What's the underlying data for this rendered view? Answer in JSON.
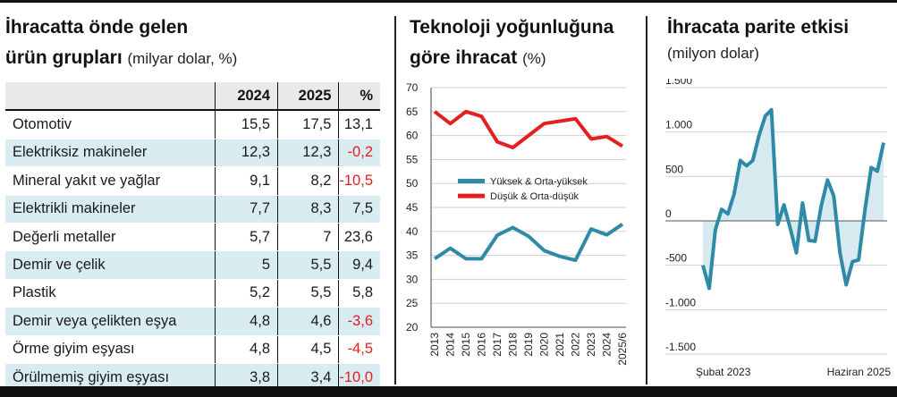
{
  "panel_left": {
    "title_line1": "İhracatta önde gelen",
    "title_line2": "ürün grupları",
    "unit": "(milyar dolar, %)",
    "headers": [
      "",
      "2024",
      "2025",
      "%"
    ],
    "rows": [
      {
        "name": "Otomotiv",
        "v2024": "15,5",
        "v2025": "17,5",
        "pct": "13,1",
        "neg": false
      },
      {
        "name": "Elektriksiz makineler",
        "v2024": "12,3",
        "v2025": "12,3",
        "pct": "-0,2",
        "neg": true
      },
      {
        "name": "Mineral yakıt ve yağlar",
        "v2024": "9,1",
        "v2025": "8,2",
        "pct": "-10,5",
        "neg": true
      },
      {
        "name": "Elektrikli makineler",
        "v2024": "7,7",
        "v2025": "8,3",
        "pct": "7,5",
        "neg": false
      },
      {
        "name": "Değerli metaller",
        "v2024": "5,7",
        "v2025": "7",
        "pct": "23,6",
        "neg": false
      },
      {
        "name": "Demir ve çelik",
        "v2024": "5",
        "v2025": "5,5",
        "pct": "9,4",
        "neg": false
      },
      {
        "name": "Plastik",
        "v2024": "5,2",
        "v2025": "5,5",
        "pct": "5,8",
        "neg": false
      },
      {
        "name": "Demir veya çelikten eşya",
        "v2024": "4,8",
        "v2025": "4,6",
        "pct": "-3,6",
        "neg": true
      },
      {
        "name": "Örme giyim eşyası",
        "v2024": "4,8",
        "v2025": "4,5",
        "pct": "-4,5",
        "neg": true
      },
      {
        "name": "Örülmemiş giyim eşyası",
        "v2024": "3,8",
        "v2025": "3,4",
        "pct": "-10,0",
        "neg": true
      }
    ],
    "colors": {
      "stripe": "#d9ecf1",
      "negative": "#e4201f"
    }
  },
  "panel_middle": {
    "title_line1": "Teknoloji yoğunluğuna",
    "title_line2": "göre ihracat",
    "unit": "(%)"
  },
  "panel_right": {
    "title_line1": "İhracata parite etkisi",
    "unit": "(milyon dolar)"
  },
  "chart_data": [
    {
      "type": "line",
      "title": "Teknoloji yoğunluğuna göre ihracat (%)",
      "x": [
        "2013",
        "2014",
        "2015",
        "2016",
        "2017",
        "2018",
        "2019",
        "2020",
        "2021",
        "2022",
        "2023",
        "2024",
        "2025/6"
      ],
      "y_ticks": [
        "70",
        "65",
        "60",
        "55",
        "50",
        "45",
        "40",
        "35",
        "30",
        "25",
        "20"
      ],
      "ylim": [
        20,
        70
      ],
      "grid": true,
      "legend_position": "middle-left",
      "series": [
        {
          "name": "Yüksek & Orta-yüksek",
          "color": "#2e8aa6",
          "values": [
            34.3,
            36.5,
            34.3,
            34.3,
            39.2,
            40.8,
            39.0,
            36.0,
            34.8,
            34.0,
            40.5,
            39.3,
            41.5
          ]
        },
        {
          "name": "Düşük & Orta-düşük",
          "color": "#e4201f",
          "values": [
            65.0,
            62.5,
            65.0,
            64.0,
            58.7,
            57.5,
            60.0,
            62.5,
            63.0,
            63.5,
            59.3,
            59.8,
            57.8
          ]
        }
      ]
    },
    {
      "type": "area",
      "title": "İhracata parite etkisi (milyon dolar)",
      "x_labels": [
        "Şubat 2023",
        "Haziran 2025"
      ],
      "y_ticks": [
        "1.500",
        "1.000",
        "500",
        "0",
        "-500",
        "-1.000",
        "-1.500"
      ],
      "ylim": [
        -1500,
        1500
      ],
      "grid": true,
      "series": [
        {
          "name": "",
          "color": "#2e8aa6",
          "fill": "#d7eaf0",
          "values": [
            -500,
            -760,
            -100,
            130,
            80,
            300,
            680,
            620,
            680,
            960,
            1180,
            1250,
            -40,
            180,
            -80,
            -360,
            200,
            -220,
            -230,
            170,
            460,
            280,
            -360,
            -720,
            -460,
            -440,
            120,
            600,
            560,
            880
          ]
        }
      ]
    }
  ]
}
